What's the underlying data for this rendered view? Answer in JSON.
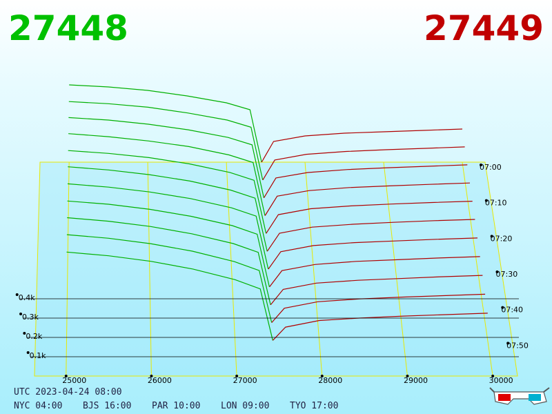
{
  "header": {
    "bid_price": "27448",
    "ask_price": "27449"
  },
  "footer": {
    "utc": "UTC 2023-04-24 08:00",
    "zones": [
      "NYC 04:00",
      "BJS 16:00",
      "PAR 10:00",
      "LON 09:00",
      "TYO 17:00"
    ]
  },
  "chart_data": {
    "type": "depth3d",
    "bid_color": "#00b000",
    "ask_color": "#b00000",
    "x": [
      25000,
      25500,
      26000,
      26500,
      27000,
      27300,
      27448,
      27449,
      27600,
      28000,
      28500,
      29000,
      29500,
      30000
    ],
    "bid_last_index": 6,
    "xlim": [
      24630,
      30290
    ],
    "xticks": [
      25000,
      26000,
      27000,
      28000,
      29000,
      30000
    ],
    "ylim": [
      0,
      600
    ],
    "yticks": [
      {
        "value": 100,
        "label": "0.1k"
      },
      {
        "value": 200,
        "label": "0.2k"
      },
      {
        "value": 300,
        "label": "0.3k"
      },
      {
        "value": 400,
        "label": "0.4k"
      }
    ],
    "tlim": [
      0,
      60
    ],
    "tticks": [
      {
        "value": 0,
        "label": "07:00"
      },
      {
        "value": 10,
        "label": "07:10"
      },
      {
        "value": 20,
        "label": "07:20"
      },
      {
        "value": 30,
        "label": "07:30"
      },
      {
        "value": 40,
        "label": "07:40"
      },
      {
        "value": 50,
        "label": "07:50"
      }
    ],
    "series": [
      {
        "time": 0,
        "values": [
          560,
          545,
          520,
          480,
          430,
          380,
          0,
          0,
          150,
          190,
          210,
          220,
          230,
          240
        ]
      },
      {
        "time": 5,
        "values": [
          550,
          535,
          510,
          470,
          420,
          370,
          0,
          0,
          140,
          180,
          200,
          212,
          222,
          232
        ]
      },
      {
        "time": 10,
        "values": [
          545,
          528,
          500,
          462,
          410,
          360,
          0,
          0,
          135,
          172,
          192,
          204,
          214,
          224
        ]
      },
      {
        "time": 15,
        "values": [
          540,
          520,
          492,
          455,
          400,
          350,
          0,
          0,
          128,
          165,
          185,
          196,
          206,
          215
        ]
      },
      {
        "time": 20,
        "values": [
          530,
          512,
          485,
          445,
          390,
          340,
          0,
          0,
          120,
          158,
          176,
          188,
          198,
          206
        ]
      },
      {
        "time": 25,
        "values": [
          525,
          505,
          476,
          436,
          380,
          330,
          0,
          0,
          112,
          150,
          168,
          180,
          190,
          198
        ]
      },
      {
        "time": 30,
        "values": [
          515,
          495,
          466,
          426,
          370,
          320,
          0,
          0,
          105,
          142,
          160,
          170,
          180,
          188
        ]
      },
      {
        "time": 35,
        "values": [
          505,
          486,
          456,
          415,
          360,
          310,
          0,
          0,
          96,
          132,
          150,
          160,
          170,
          178
        ]
      },
      {
        "time": 40,
        "values": [
          498,
          478,
          448,
          406,
          350,
          300,
          0,
          0,
          88,
          124,
          140,
          150,
          160,
          168
        ]
      },
      {
        "time": 45,
        "values": [
          490,
          470,
          440,
          398,
          340,
          290,
          0,
          0,
          80,
          116,
          132,
          142,
          150,
          158
        ]
      },
      {
        "time": 50,
        "values": [
          480,
          460,
          430,
          388,
          330,
          280,
          0,
          0,
          72,
          108,
          122,
          132,
          140,
          148
        ]
      }
    ]
  }
}
